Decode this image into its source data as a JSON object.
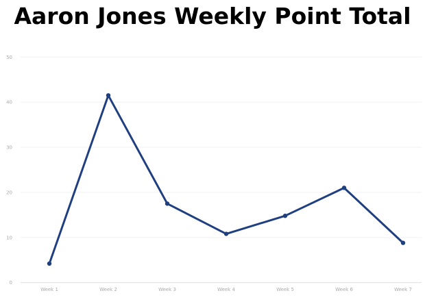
{
  "chart_data": {
    "type": "line",
    "title": "Aaron Jones Weekly Point Total",
    "xlabel": "",
    "ylabel": "",
    "categories": [
      "Week 1",
      "Week 2",
      "Week 3",
      "Week 4",
      "Week 5",
      "Week 6",
      "Week 7"
    ],
    "series": [
      {
        "values": [
          4.2,
          41.5,
          17.5,
          10.8,
          14.8,
          21.0,
          8.8
        ],
        "color": "#1f3f80"
      }
    ],
    "ylim": [
      0,
      50
    ],
    "yticks": [
      0,
      10,
      20,
      30,
      40,
      50
    ],
    "grid": true,
    "legend": "none"
  }
}
